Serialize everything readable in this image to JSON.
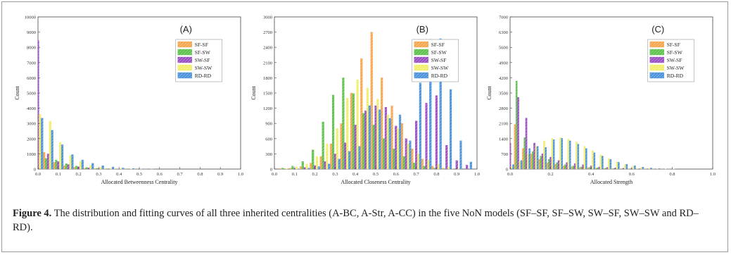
{
  "figure": {
    "caption_label": "Figure 4.",
    "caption_text": "The distribution and fitting curves of all three inherited centralities (A-BC, A-Str, A-CC) in the five NoN models (SF–SF, SF–SW, SW–SF, SW–SW and RD–RD)."
  },
  "colors": {
    "SF-SF": "#f5a64e",
    "SF-SW": "#5cc24b",
    "SW-SF": "#9b4fc4",
    "SW-SW": "#f2ee6a",
    "RD-RD": "#4b93dc"
  },
  "chart_data": [
    {
      "type": "bar",
      "panel_label": "(A)",
      "xlabel": "Allocated Betweenness Centrality",
      "ylabel": "Count",
      "xlim": [
        0.0,
        1.0
      ],
      "ylim": [
        0,
        10000
      ],
      "xticks": [
        "0.0",
        "0.1",
        "0.2",
        "0.3",
        "0.4",
        "0.5",
        "0.6",
        "0.7",
        "0.8",
        "0.9",
        "1.0"
      ],
      "yticks": [
        "0",
        "1000",
        "2000",
        "3000",
        "4000",
        "5000",
        "6000",
        "7000",
        "8000",
        "9000",
        "10000"
      ],
      "bin_width": 0.05,
      "legend_position": "top-right",
      "x": [
        0.0,
        0.05,
        0.1,
        0.15,
        0.2,
        0.25,
        0.3,
        0.35,
        0.4,
        0.45,
        0.5,
        0.55
      ],
      "series": [
        {
          "name": "SF-SF",
          "values": [
            9600,
            1100,
            450,
            220,
            120,
            60,
            30,
            15,
            8,
            5,
            2,
            1
          ]
        },
        {
          "name": "SF-SW",
          "values": [
            7800,
            700,
            600,
            350,
            200,
            100,
            50,
            25,
            12,
            6,
            3,
            1
          ]
        },
        {
          "name": "SW-SF",
          "values": [
            8450,
            1000,
            500,
            300,
            150,
            80,
            40,
            20,
            10,
            5,
            2,
            1
          ]
        },
        {
          "name": "SW-SW",
          "values": [
            3600,
            3150,
            1750,
            900,
            500,
            250,
            120,
            60,
            30,
            15,
            6,
            2
          ]
        },
        {
          "name": "RD-RD",
          "values": [
            3350,
            2550,
            1600,
            950,
            600,
            380,
            220,
            140,
            80,
            40,
            20,
            10
          ]
        }
      ]
    },
    {
      "type": "bar",
      "panel_label": "(B)",
      "xlabel": "Allocated Closeness Centrality",
      "ylabel": "Count",
      "xlim": [
        0.0,
        1.0
      ],
      "ylim": [
        0,
        3000
      ],
      "xticks": [
        "0.0",
        "0.1",
        "0.2",
        "0.3",
        "0.4",
        "0.5",
        "0.6",
        "0.7",
        "0.8",
        "0.9",
        "1.0"
      ],
      "yticks": [
        "0",
        "300",
        "600",
        "900",
        "1200",
        "1500",
        "1800",
        "2100",
        "2400",
        "2700",
        "3000"
      ],
      "bin_width": 0.05,
      "legend_position": "top-right",
      "x": [
        0.05,
        0.1,
        0.15,
        0.2,
        0.25,
        0.3,
        0.35,
        0.4,
        0.45,
        0.5,
        0.55,
        0.6,
        0.65,
        0.7,
        0.75,
        0.8,
        0.85,
        0.9,
        0.95
      ],
      "series": [
        {
          "name": "SF-SF",
          "values": [
            10,
            20,
            50,
            120,
            250,
            500,
            900,
            1500,
            2180,
            2700,
            1800,
            1250,
            900,
            400,
            200,
            60,
            20,
            5,
            0
          ]
        },
        {
          "name": "SF-SW",
          "values": [
            20,
            60,
            150,
            380,
            930,
            1460,
            1800,
            1490,
            1100,
            870,
            600,
            400,
            250,
            120,
            60,
            20,
            8,
            0,
            0
          ]
        },
        {
          "name": "SW-SF",
          "values": [
            0,
            10,
            30,
            70,
            150,
            300,
            520,
            870,
            1150,
            1250,
            1220,
            850,
            600,
            950,
            1300,
            1450,
            470,
            170,
            80
          ]
        },
        {
          "name": "SW-SW",
          "values": [
            10,
            40,
            100,
            250,
            500,
            800,
            1400,
            1760,
            1600,
            1380,
            1070,
            800,
            500,
            300,
            180,
            100,
            40,
            10,
            0
          ]
        },
        {
          "name": "RD-RD",
          "values": [
            0,
            5,
            20,
            50,
            100,
            200,
            350,
            450,
            1250,
            1170,
            1000,
            1070,
            560,
            1700,
            2560,
            2570,
            1570,
            560,
            140
          ]
        }
      ]
    },
    {
      "type": "bar",
      "panel_label": "(C)",
      "xlabel": "Allocated Strength",
      "ylabel": "Count",
      "xlim": [
        0.0,
        1.0
      ],
      "ylim": [
        0,
        7000
      ],
      "xticks": [
        "0.0",
        "0.2",
        "0.4",
        "0.6",
        "0.8",
        "1.0"
      ],
      "yticks": [
        "0",
        "700",
        "1400",
        "2100",
        "2800",
        "3500",
        "4200",
        "4900",
        "5600",
        "6300",
        "7000"
      ],
      "bin_width": 0.04,
      "legend_position": "top-right",
      "x": [
        0.0,
        0.04,
        0.08,
        0.12,
        0.16,
        0.2,
        0.24,
        0.28,
        0.32,
        0.36,
        0.4,
        0.44,
        0.48,
        0.52,
        0.56,
        0.6,
        0.64,
        0.68,
        0.72,
        0.76,
        0.8,
        0.84
      ],
      "series": [
        {
          "name": "SF-SF",
          "values": [
            6400,
            2050,
            950,
            700,
            450,
            300,
            220,
            150,
            110,
            80,
            60,
            40,
            30,
            20,
            15,
            10,
            8,
            5,
            3,
            2,
            1,
            0
          ]
        },
        {
          "name": "SF-SW",
          "values": [
            1400,
            4050,
            1450,
            800,
            600,
            450,
            300,
            200,
            150,
            100,
            80,
            60,
            40,
            30,
            20,
            15,
            10,
            5,
            3,
            2,
            1,
            0
          ]
        },
        {
          "name": "SW-SF",
          "values": [
            1200,
            3300,
            2350,
            1200,
            700,
            550,
            400,
            300,
            250,
            200,
            150,
            100,
            80,
            60,
            40,
            30,
            20,
            15,
            10,
            5,
            3,
            0
          ]
        },
        {
          "name": "SW-SW",
          "values": [
            100,
            350,
            700,
            1050,
            1300,
            1420,
            1450,
            1380,
            1250,
            1050,
            850,
            650,
            480,
            330,
            220,
            140,
            80,
            40,
            20,
            10,
            5,
            0
          ]
        },
        {
          "name": "RD-RD",
          "values": [
            200,
            400,
            950,
            1050,
            1000,
            1350,
            1420,
            1300,
            1150,
            950,
            750,
            600,
            450,
            320,
            220,
            150,
            90,
            50,
            25,
            10,
            5,
            0
          ]
        }
      ]
    }
  ]
}
